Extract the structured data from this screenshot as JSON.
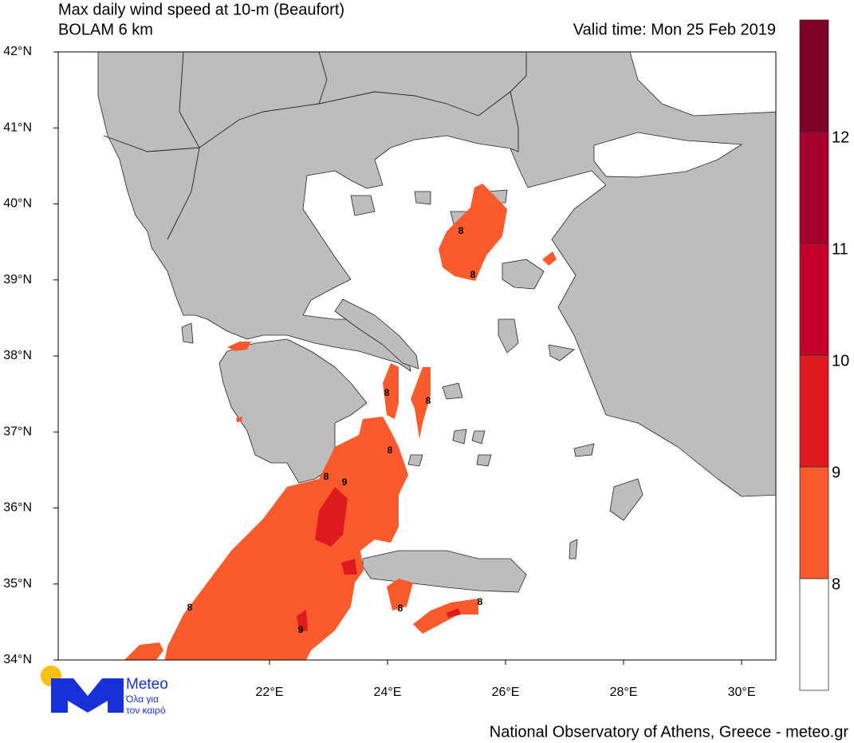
{
  "title": "Max daily wind speed at 10-m (Beaufort)",
  "subtitle": "BOLAM 6 km",
  "valid_time": "Valid time: Mon 25 Feb 2019",
  "xlim": [
    18.42,
    30.58
  ],
  "ylim": [
    34,
    42
  ],
  "xticks": [
    {
      "value": 22,
      "label": "22°E"
    },
    {
      "value": 24,
      "label": "24°E"
    },
    {
      "value": 26,
      "label": "26°E"
    },
    {
      "value": 28,
      "label": "28°E"
    },
    {
      "value": 30,
      "label": "30°E"
    }
  ],
  "yticks": [
    {
      "value": 34,
      "label": "34°N"
    },
    {
      "value": 35,
      "label": "35°N"
    },
    {
      "value": 36,
      "label": "36°N"
    },
    {
      "value": 37,
      "label": "37°N"
    },
    {
      "value": 38,
      "label": "38°N"
    },
    {
      "value": 39,
      "label": "39°N"
    },
    {
      "value": 40,
      "label": "40°N"
    },
    {
      "value": 41,
      "label": "41°N"
    },
    {
      "value": 42,
      "label": "42°N"
    }
  ],
  "colorbar": {
    "levels": [
      8,
      9,
      10,
      11,
      12
    ],
    "colors": [
      "#ffffff",
      "#fa5a2c",
      "#e01b1f",
      "#c4002a",
      "#a60030",
      "#7e0024"
    ]
  },
  "contour_labels": [
    8,
    8,
    8,
    8,
    8,
    8,
    9,
    8,
    9,
    8,
    8
  ],
  "logo": {
    "name": "Meteo",
    "tagline": [
      "Όλα για",
      "τον καιρό"
    ]
  },
  "footer": "National Observatory of Athens, Greece - meteo.gr"
}
